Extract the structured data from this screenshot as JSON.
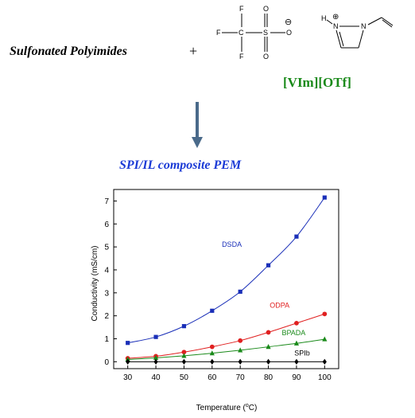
{
  "scheme": {
    "reactant": "Sulfonated Polyimides",
    "plus": "+",
    "ionic_liquid": "[VIm][OTf]",
    "product": "SPI/IL composite PEM",
    "colors": {
      "ionic_liquid": "#1a8a1a",
      "product": "#1a3ad6",
      "arrow": "#4a6a8a"
    },
    "triflate_atoms": {
      "F_top": "F",
      "F_left": "F",
      "F_bottom": "F",
      "C": "C",
      "S": "S",
      "O_top": "O",
      "O_bottom": "O",
      "O_right": "O",
      "charge": "⊖"
    },
    "imidazolium_atoms": {
      "H": "H",
      "N1": "N",
      "N2": "N",
      "charge": "⊕"
    }
  },
  "chart_data": {
    "type": "line",
    "xlabel_main": "Temperature (",
    "xlabel_sup": "o",
    "xlabel_end": "C)",
    "ylabel": "Conductivity (mS/cm)",
    "x": [
      30,
      40,
      50,
      60,
      70,
      80,
      90,
      100
    ],
    "xticks": [
      "30",
      "40",
      "50",
      "60",
      "70",
      "80",
      "90",
      "100"
    ],
    "yticks": [
      "0",
      "1",
      "2",
      "3",
      "4",
      "5",
      "6",
      "7"
    ],
    "xlim": [
      25,
      105
    ],
    "ylim": [
      -0.3,
      7.5
    ],
    "series": [
      {
        "name": "DSDA",
        "color": "#1a2fb8",
        "marker": "square",
        "values": [
          0.82,
          1.08,
          1.55,
          2.22,
          3.05,
          4.2,
          5.45,
          7.15
        ],
        "label_pos": [
          67,
          5.0
        ]
      },
      {
        "name": "ODPA",
        "color": "#e02020",
        "marker": "circle",
        "values": [
          0.15,
          0.24,
          0.42,
          0.65,
          0.92,
          1.28,
          1.68,
          2.08
        ],
        "label_pos": [
          84,
          2.35
        ]
      },
      {
        "name": "BPADA",
        "color": "#1a8a1a",
        "marker": "triangle",
        "values": [
          0.1,
          0.17,
          0.26,
          0.37,
          0.5,
          0.65,
          0.8,
          0.98
        ],
        "label_pos": [
          89,
          1.15
        ]
      },
      {
        "name": "SPIb",
        "color": "#000000",
        "marker": "diamond",
        "values": [
          0,
          0,
          0,
          0,
          0,
          0,
          0,
          0
        ],
        "label_pos": [
          92,
          0.28
        ]
      }
    ]
  }
}
